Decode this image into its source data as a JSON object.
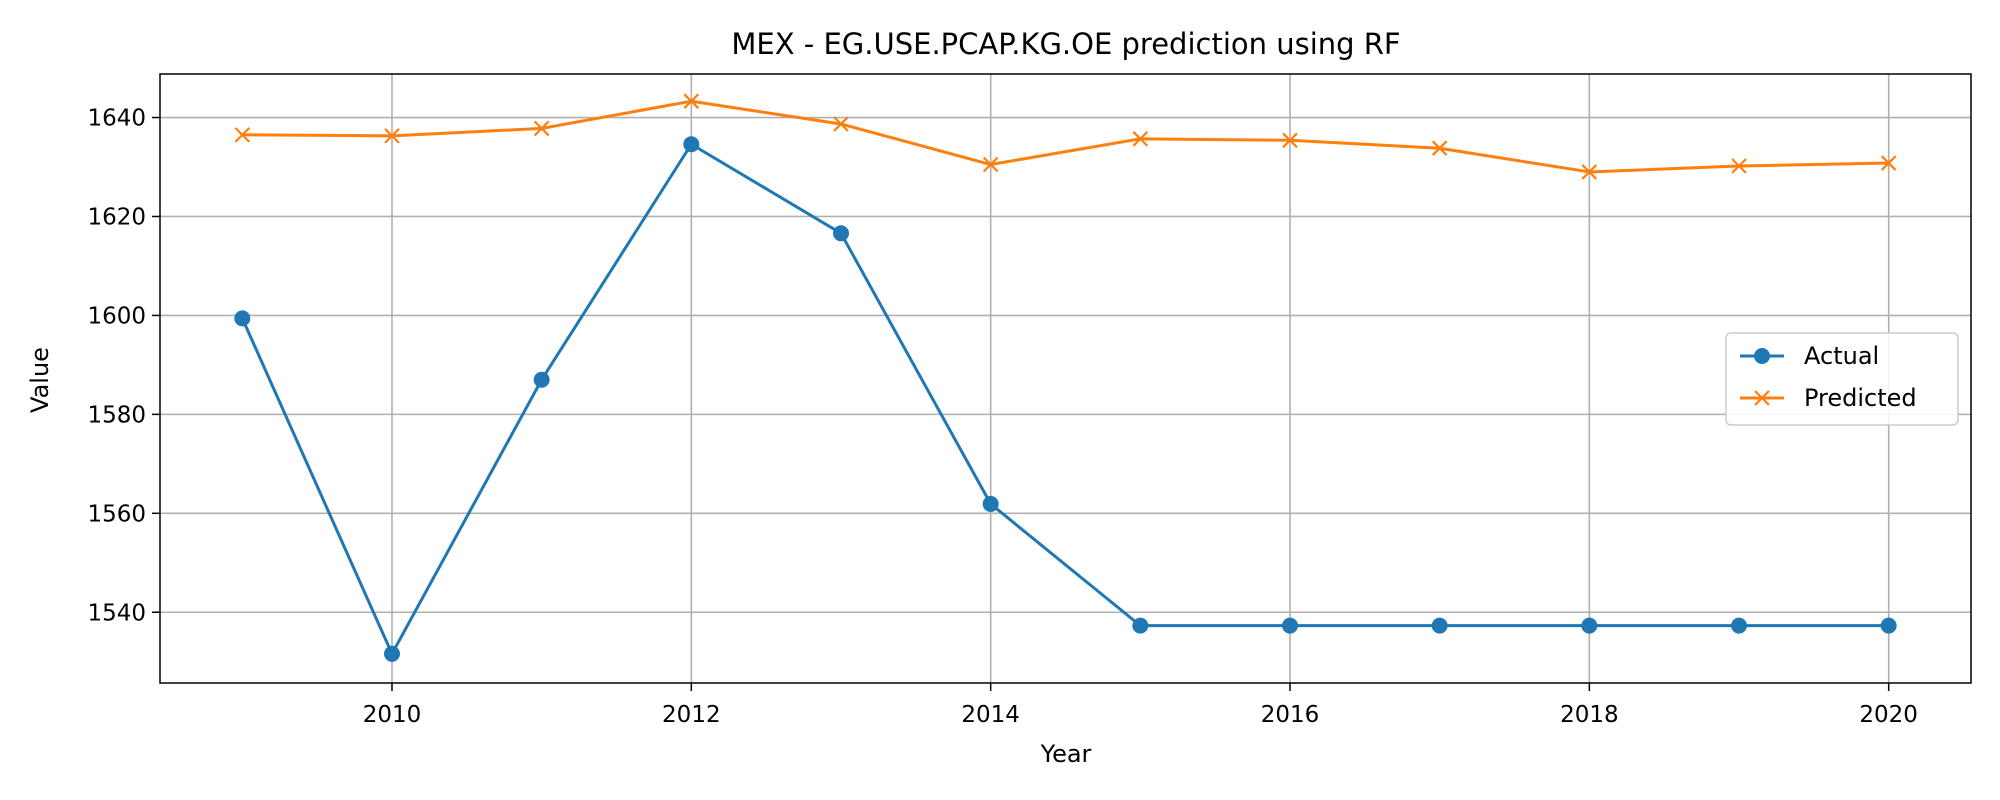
{
  "chart_data": {
    "type": "line",
    "title": "MEX - EG.USE.PCAP.KG.OE prediction using RF",
    "xlabel": "Year",
    "ylabel": "Value",
    "x": [
      2009,
      2010,
      2011,
      2012,
      2013,
      2014,
      2015,
      2016,
      2017,
      2018,
      2019,
      2020
    ],
    "xlim": [
      2008.45,
      2020.55
    ],
    "ylim": [
      1525.7,
      1648.8
    ],
    "x_ticks": [
      2010,
      2012,
      2014,
      2016,
      2018,
      2020
    ],
    "y_ticks": [
      1540,
      1560,
      1580,
      1600,
      1620,
      1640
    ],
    "grid": true,
    "legend_position": "center-right",
    "series": [
      {
        "name": "Actual",
        "color": "#1f77b4",
        "marker": "circle",
        "values": [
          1599.4,
          1531.6,
          1587.0,
          1634.6,
          1616.6,
          1561.9,
          1537.3,
          1537.3,
          1537.3,
          1537.3,
          1537.3,
          1537.3
        ]
      },
      {
        "name": "Predicted",
        "color": "#ff7f0e",
        "marker": "x",
        "values": [
          1636.5,
          1636.3,
          1637.8,
          1643.3,
          1638.7,
          1630.5,
          1635.7,
          1635.4,
          1633.8,
          1629.0,
          1630.2,
          1630.8
        ]
      }
    ]
  }
}
